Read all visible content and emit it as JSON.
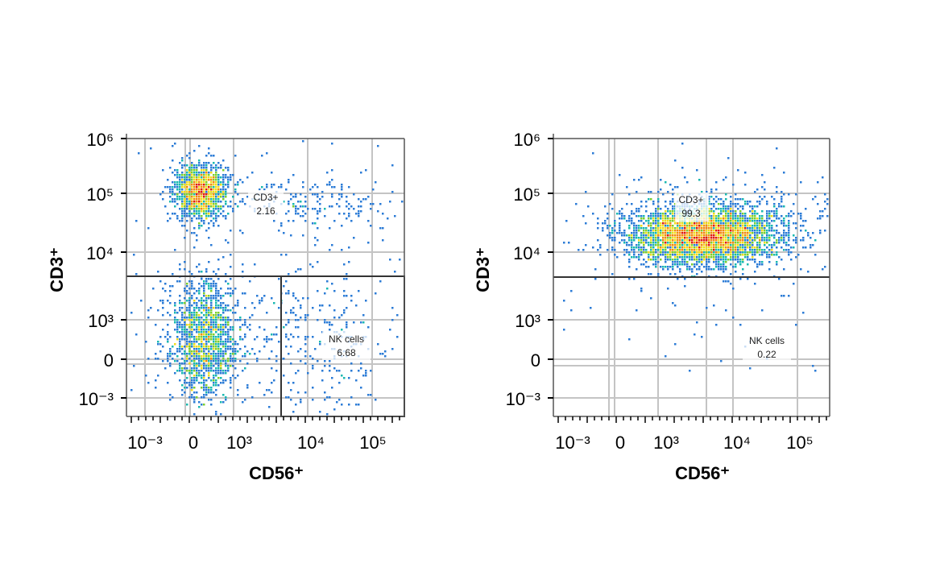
{
  "chart_data": [
    {
      "type": "scatter",
      "subtype": "flow-cytometry-density",
      "xlabel": "CD56⁺",
      "ylabel": "CD3⁺",
      "x_ticks": [
        "10⁻³",
        "0",
        "10³",
        "10⁴",
        "10⁵"
      ],
      "y_ticks": [
        "10⁶",
        "10⁵",
        "10⁴",
        "10³",
        "0",
        "10⁻³"
      ],
      "scale": "biexponential",
      "grid": true,
      "colormap": [
        "#1a2db0",
        "#2b7bd6",
        "#19b8b0",
        "#7ccf2f",
        "#f0dc1c",
        "#f28a12",
        "#e01b10"
      ],
      "gates": [
        {
          "name": "CD3+",
          "value": "2.16"
        },
        {
          "name": "NK cells",
          "value": "6.68"
        }
      ],
      "populations": [
        {
          "name": "",
          "cd56_center": "0",
          "cd3_center": "10⁵",
          "density": "high"
        },
        {
          "name": "",
          "cd56_center": "0",
          "cd3_center": "10³",
          "density": "high"
        },
        {
          "name": "",
          "cd56_center": "10⁴",
          "cd3_center": "10⁵",
          "density": "low"
        },
        {
          "name": "",
          "cd56_center": "10⁴",
          "cd3_center": "10³",
          "density": "low"
        }
      ]
    },
    {
      "type": "scatter",
      "subtype": "flow-cytometry-density",
      "xlabel": "CD56⁺",
      "ylabel": "CD3⁺",
      "x_ticks": [
        "10⁻³",
        "0",
        "10³",
        "10⁴",
        "10⁵"
      ],
      "y_ticks": [
        "10⁶",
        "10⁵",
        "10⁴",
        "10³",
        "0",
        "10⁻³"
      ],
      "scale": "biexponential",
      "grid": true,
      "colormap": [
        "#1a2db0",
        "#2b7bd6",
        "#19b8b0",
        "#7ccf2f",
        "#f0dc1c",
        "#f28a12",
        "#e01b10"
      ],
      "gates": [
        {
          "name": "CD3+",
          "value": "99.3"
        },
        {
          "name": "NK cells",
          "value": "0.22"
        }
      ],
      "populations": [
        {
          "name": "",
          "cd56_center": "10³–10⁴",
          "cd3_center": "10⁴",
          "density": "high"
        }
      ]
    }
  ]
}
